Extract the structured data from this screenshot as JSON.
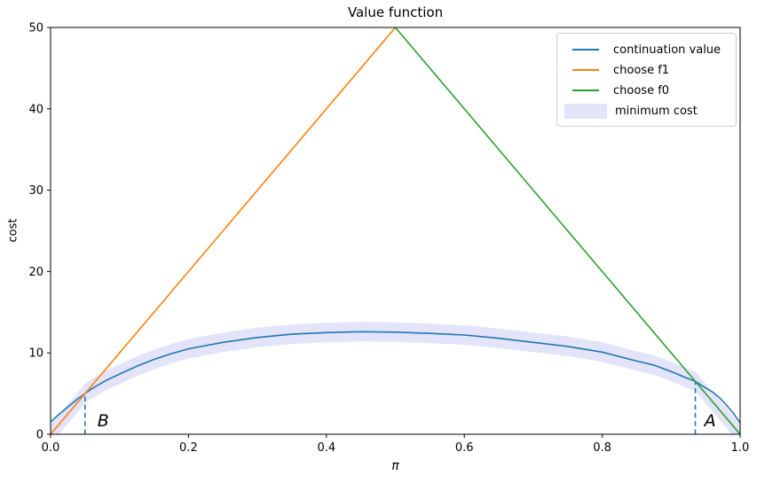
{
  "chart_data": {
    "type": "line",
    "title": "Value function",
    "xlabel": "π",
    "ylabel": "cost",
    "xlim": [
      0.0,
      1.0
    ],
    "ylim": [
      0,
      50
    ],
    "grid": false,
    "legend_position": "upper right",
    "xticks": [
      "0.0",
      "0.2",
      "0.4",
      "0.6",
      "0.8",
      "1.0"
    ],
    "xtick_values": [
      0.0,
      0.2,
      0.4,
      0.6,
      0.8,
      1.0
    ],
    "yticks": [
      "0",
      "10",
      "20",
      "30",
      "40",
      "50"
    ],
    "ytick_values": [
      0,
      10,
      20,
      30,
      40,
      50
    ],
    "axis_color": "#000000",
    "series": [
      {
        "name": "continuation value",
        "color": "#1f77b4",
        "x": [
          0.0,
          0.01,
          0.02,
          0.03,
          0.04,
          0.05,
          0.06,
          0.08,
          0.1,
          0.125,
          0.15,
          0.175,
          0.2,
          0.25,
          0.3,
          0.35,
          0.4,
          0.45,
          0.5,
          0.55,
          0.6,
          0.65,
          0.7,
          0.75,
          0.8,
          0.85,
          0.875,
          0.9,
          0.92,
          0.935,
          0.95,
          0.96,
          0.97,
          0.98,
          0.99,
          1.0
        ],
        "y": [
          1.5,
          2.3,
          3.0,
          3.7,
          4.4,
          5.0,
          5.6,
          6.6,
          7.4,
          8.35,
          9.2,
          9.9,
          10.5,
          11.3,
          11.9,
          12.3,
          12.5,
          12.6,
          12.55,
          12.4,
          12.2,
          11.8,
          11.3,
          10.8,
          10.1,
          9.0,
          8.5,
          7.7,
          7.0,
          6.5,
          5.7,
          5.2,
          4.5,
          3.6,
          2.6,
          1.4
        ]
      },
      {
        "name": "choose f1",
        "color": "#ff7f0e",
        "x": [
          0.0,
          0.5
        ],
        "y": [
          0,
          50
        ]
      },
      {
        "name": "choose f0",
        "color": "#2ca02c",
        "x": [
          0.5,
          1.0
        ],
        "y": [
          50,
          0
        ]
      }
    ],
    "band": {
      "name": "minimum cost",
      "color": "#e3e3f9",
      "half_width": 1.2,
      "x": [
        0.0,
        0.0125,
        0.025,
        0.0375,
        0.05,
        0.06,
        0.08,
        0.1,
        0.125,
        0.15,
        0.175,
        0.2,
        0.25,
        0.3,
        0.35,
        0.4,
        0.45,
        0.5,
        0.55,
        0.6,
        0.65,
        0.7,
        0.75,
        0.8,
        0.85,
        0.875,
        0.9,
        0.92,
        0.935,
        0.95,
        0.9625,
        0.975,
        0.9875,
        1.0
      ],
      "y": [
        0,
        1.25,
        2.5,
        3.75,
        5.0,
        5.6,
        6.6,
        7.4,
        8.35,
        9.2,
        9.9,
        10.5,
        11.3,
        11.9,
        12.3,
        12.5,
        12.6,
        12.55,
        12.4,
        12.2,
        11.8,
        11.3,
        10.8,
        10.1,
        9.0,
        8.5,
        7.7,
        7.0,
        6.5,
        5.0,
        3.75,
        2.5,
        1.25,
        0
      ]
    },
    "annotations": [
      {
        "label": "B",
        "x": 0.05,
        "top": 5.0,
        "line_color": "#1f77b4",
        "label_x": 0.068,
        "label_y": 1.0
      },
      {
        "label": "A",
        "x": 0.935,
        "top": 6.5,
        "line_color": "#1f77b4",
        "label_x": 0.948,
        "label_y": 1.0
      }
    ]
  }
}
